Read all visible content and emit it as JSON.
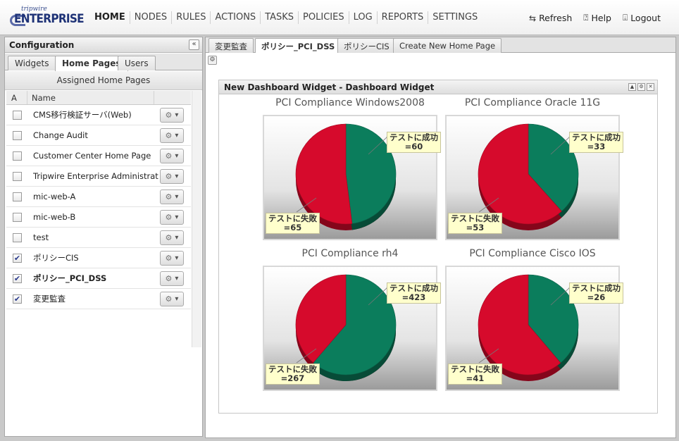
{
  "brand": {
    "small": "tripwire",
    "big": "ENTERPRISE"
  },
  "nav": [
    "HOME",
    "NODES",
    "RULES",
    "ACTIONS",
    "TASKS",
    "POLICIES",
    "LOG",
    "REPORTS",
    "SETTINGS"
  ],
  "tools": {
    "refresh": "Refresh",
    "help": "Help",
    "logout": "Logout"
  },
  "left_panel": {
    "title": "Configuration",
    "collapse_glyph": "«",
    "tabs": [
      "Widgets",
      "Home Pages",
      "Users"
    ],
    "active_tab": "Home Pages",
    "subheader": "Assigned Home Pages",
    "columns": {
      "a": "A",
      "name": "Name"
    },
    "rows": [
      {
        "name": "CMS移行検証サーバ(Web)",
        "checked": false,
        "bold": false
      },
      {
        "name": "Change Audit",
        "checked": false,
        "bold": false
      },
      {
        "name": "Customer Center Home Page",
        "checked": false,
        "bold": false
      },
      {
        "name": "Tripwire Enterprise Administrator",
        "checked": false,
        "bold": false
      },
      {
        "name": "mic-web-A",
        "checked": false,
        "bold": false
      },
      {
        "name": "mic-web-B",
        "checked": false,
        "bold": false
      },
      {
        "name": "test",
        "checked": false,
        "bold": false
      },
      {
        "name": "ポリシーCIS",
        "checked": true,
        "bold": false
      },
      {
        "name": "ポリシー_PCI_DSS",
        "checked": true,
        "bold": true
      },
      {
        "name": "変更監査",
        "checked": true,
        "bold": false
      }
    ]
  },
  "main_tabs": [
    "変更監査",
    "ポリシー_PCI_DSS",
    "ポリシーCIS",
    "Create New Home Page"
  ],
  "active_main_tab": "ポリシー_PCI_DSS",
  "widget": {
    "title": "New Dashboard Widget - Dashboard Widget"
  },
  "colors": {
    "success": "#0b7d5c",
    "fail": "#d60a2c",
    "label_bg": "#ffffcc"
  },
  "chart_data": [
    {
      "type": "pie",
      "title": "PCI Compliance Windows2008",
      "labels": [
        "テストに成功",
        "テストに失敗"
      ],
      "values": [
        60,
        65
      ]
    },
    {
      "type": "pie",
      "title": "PCI Compliance Oracle 11G",
      "labels": [
        "テストに成功",
        "テストに失敗"
      ],
      "values": [
        33,
        53
      ]
    },
    {
      "type": "pie",
      "title": "PCI Compliance rh4",
      "labels": [
        "テストに成功",
        "テストに失敗"
      ],
      "values": [
        423,
        267
      ]
    },
    {
      "type": "pie",
      "title": "PCI Compliance Cisco IOS",
      "labels": [
        "テストに成功",
        "テストに失敗"
      ],
      "values": [
        26,
        41
      ]
    }
  ]
}
